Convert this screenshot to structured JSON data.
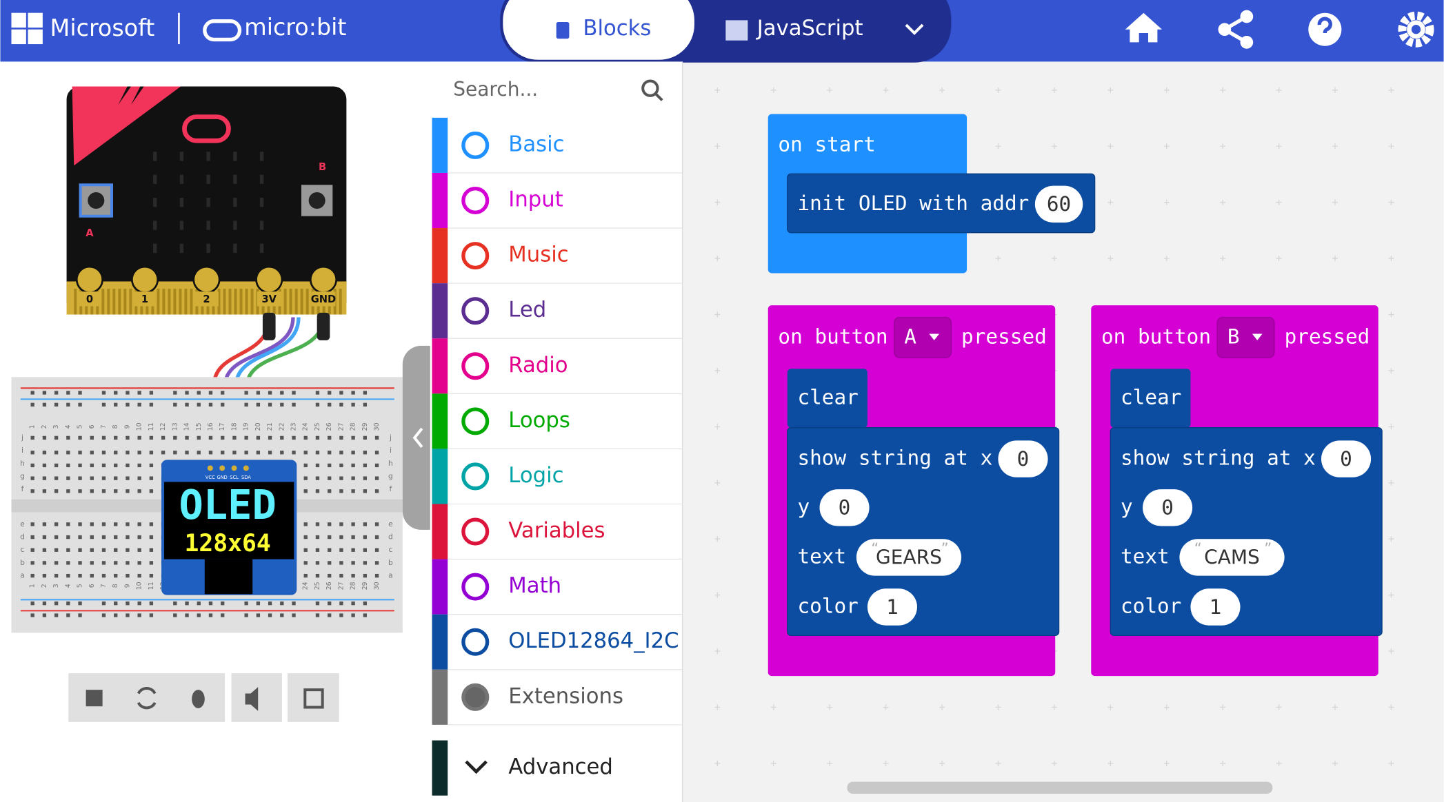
{
  "header": {
    "brand": "Microsoft",
    "product": "micro:bit",
    "tabs": [
      "Blocks",
      "JavaScript"
    ]
  },
  "simulator": {
    "pins": [
      "0",
      "1",
      "2",
      "3V",
      "GND"
    ],
    "buttons": [
      "A",
      "B"
    ],
    "oled": {
      "pins": [
        "VCC",
        "GND",
        "SCL",
        "SDA"
      ],
      "title": "OLED",
      "size": "128x64"
    },
    "breadboard": {
      "columns": [
        1,
        2,
        3,
        4,
        5,
        6,
        7,
        8,
        9,
        10,
        11,
        12,
        13,
        14,
        15,
        16,
        17,
        18,
        19,
        20,
        21,
        22,
        23,
        24,
        25,
        26,
        27,
        28,
        29,
        30
      ],
      "rows_top": [
        "j",
        "i",
        "h",
        "g",
        "f"
      ],
      "rows_bottom": [
        "e",
        "d",
        "c",
        "b",
        "a"
      ]
    }
  },
  "toolbox": {
    "search": "Search...",
    "categories": [
      {
        "name": "Basic",
        "color": "#1e90ff"
      },
      {
        "name": "Input",
        "color": "#d400d4"
      },
      {
        "name": "Music",
        "color": "#e63022"
      },
      {
        "name": "Led",
        "color": "#5c2d91"
      },
      {
        "name": "Radio",
        "color": "#e3008c"
      },
      {
        "name": "Loops",
        "color": "#00aa00"
      },
      {
        "name": "Logic",
        "color": "#00a4a6"
      },
      {
        "name": "Variables",
        "color": "#dc143c"
      },
      {
        "name": "Math",
        "color": "#9400d3"
      },
      {
        "name": "OLED12864_I2C",
        "color": "#0c4da2"
      },
      {
        "name": "Extensions",
        "color": "#757575"
      }
    ],
    "advanced": "Advanced"
  },
  "blocks": {
    "on_start": {
      "label": "on start",
      "init": "init OLED with addr",
      "addr": "60"
    },
    "button_a": {
      "on": "on button",
      "button": "A",
      "pressed": "pressed",
      "clear": "clear",
      "show": "show string at x",
      "x": "0",
      "y_label": "y",
      "y": "0",
      "text_label": "text",
      "text": "GEARS",
      "color_label": "color",
      "color": "1"
    },
    "button_b": {
      "on": "on button",
      "button": "B",
      "pressed": "pressed",
      "clear": "clear",
      "show": "show string at x",
      "x": "0",
      "y_label": "y",
      "y": "0",
      "text_label": "text",
      "text": "CAMS",
      "color_label": "color",
      "color": "1"
    }
  }
}
